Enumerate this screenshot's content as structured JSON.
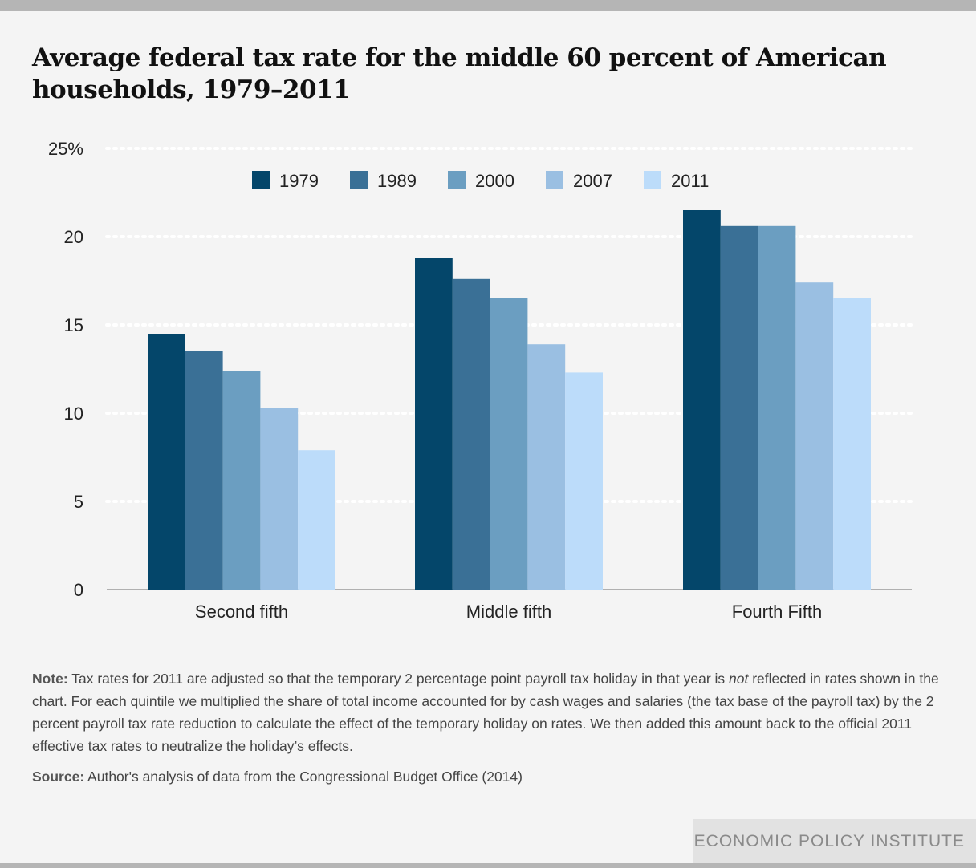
{
  "title": "Average federal tax rate for the middle 60 percent of American households, 1979–2011",
  "chart_data": {
    "type": "bar",
    "categories": [
      "Second fifth",
      "Middle fifth",
      "Fourth Fifth"
    ],
    "series": [
      {
        "name": "1979",
        "color": "#04466a",
        "values": [
          14.5,
          18.8,
          21.5
        ]
      },
      {
        "name": "1989",
        "color": "#3a7096",
        "values": [
          13.5,
          17.6,
          20.6
        ]
      },
      {
        "name": "2000",
        "color": "#6b9ec1",
        "values": [
          12.4,
          16.5,
          20.6
        ]
      },
      {
        "name": "2007",
        "color": "#9abfe2",
        "values": [
          10.3,
          13.9,
          17.4
        ]
      },
      {
        "name": "2011",
        "color": "#bcdcfa",
        "values": [
          7.9,
          12.3,
          16.5
        ]
      }
    ],
    "ylim": [
      0,
      25
    ],
    "yticks": [
      0,
      5,
      10,
      15,
      20,
      25
    ],
    "ytick_labels": [
      "0",
      "5",
      "10",
      "15",
      "20",
      "25%"
    ],
    "grid": true,
    "legend_position": "top-center"
  },
  "note": {
    "label": "Note:",
    "text_before": " Tax rates for 2011 are adjusted so that the temporary 2 percentage point payroll tax holiday in that year is ",
    "emphasis": "not",
    "text_after": " reflected in rates shown in the chart. For each quintile we multiplied the share of total income accounted for by cash wages and salaries (the tax base of the payroll tax) by the 2 percent payroll tax rate reduction to calculate the effect of the temporary holiday on rates. We then added this amount back to the official 2011 effective tax rates to neutralize the holiday’s effects."
  },
  "source": {
    "label": "Source:",
    "text": " Author's analysis of data from the Congressional Budget Office (2014)"
  },
  "brand": "ECONOMIC POLICY INSTITUTE"
}
